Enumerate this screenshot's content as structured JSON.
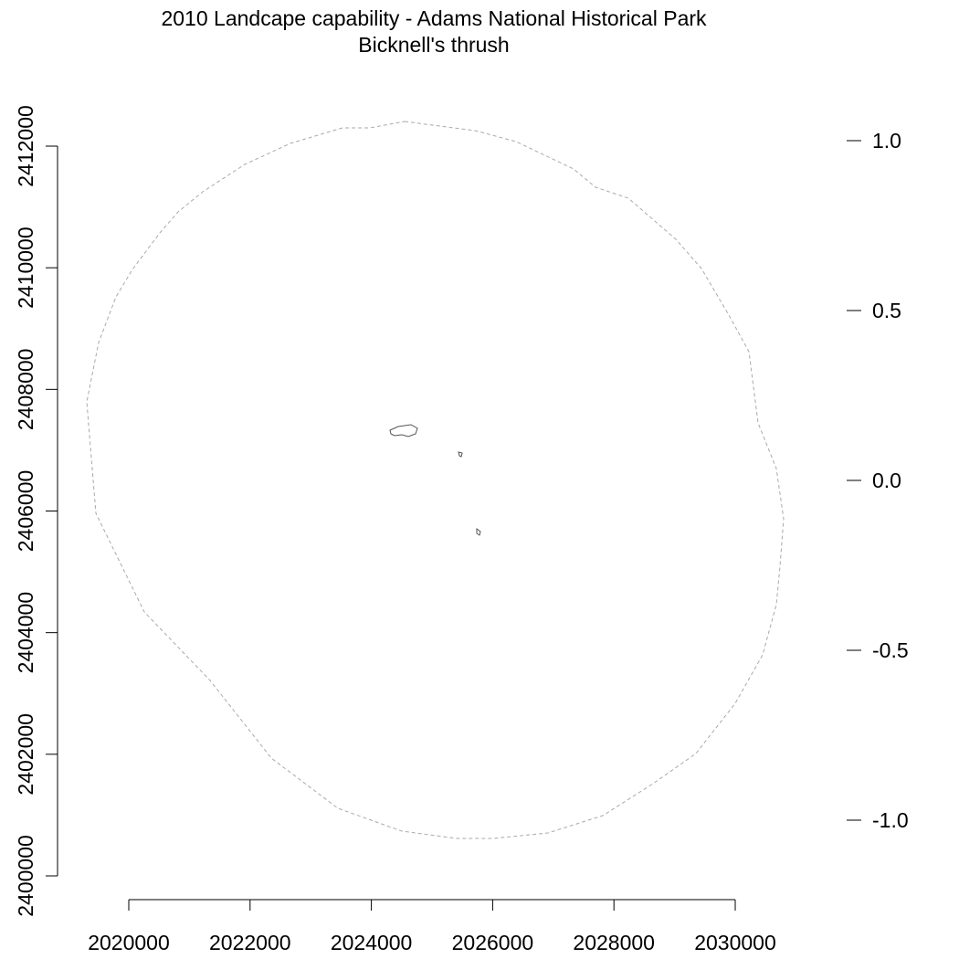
{
  "map": {
    "title": "2010 Landcape capability - Adams National Historical Park",
    "subtitle": "Bicknell's thrush",
    "x_axis": {
      "ticks": [
        2020000,
        2022000,
        2024000,
        2026000,
        2028000,
        2030000
      ],
      "tick_labels": [
        "2020000",
        "2022000",
        "2024000",
        "2026000",
        "2028000",
        "2030000"
      ]
    },
    "y_axis": {
      "ticks": [
        2400000,
        2402000,
        2404000,
        2406000,
        2408000,
        2410000,
        2412000
      ],
      "tick_labels": [
        "2400000",
        "2402000",
        "2404000",
        "2406000",
        "2408000",
        "2410000",
        "2412000"
      ]
    },
    "legend_scale": {
      "ticks": [
        1.0,
        0.5,
        0.0,
        -0.5,
        -1.0
      ],
      "tick_labels": [
        "1.0",
        "0.5",
        "0.0",
        "-0.5",
        "-1.0"
      ]
    },
    "boundary_color": "#aaaaaa",
    "park_outline_color": "#555555"
  }
}
